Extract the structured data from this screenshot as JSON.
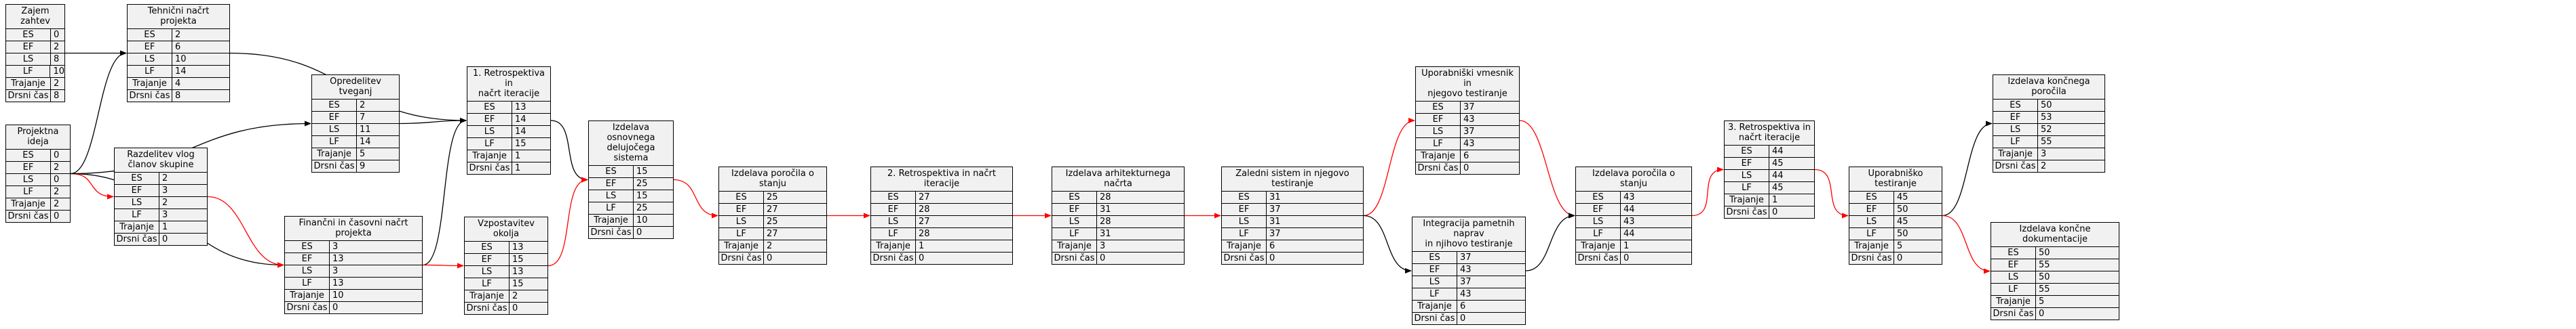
{
  "field_labels": [
    "ES",
    "EF",
    "LS",
    "LF",
    "Trajanje",
    "Drsni čas"
  ],
  "nodes": [
    {
      "id": "n0",
      "title": "Zajem zahtev",
      "values": [
        "0",
        "2",
        "8",
        "10",
        "2",
        "8"
      ]
    },
    {
      "id": "n1",
      "title": "Tehnični načrt projekta",
      "values": [
        "2",
        "6",
        "10",
        "14",
        "4",
        "8"
      ]
    },
    {
      "id": "n2",
      "title": "Projektna ideja",
      "values": [
        "0",
        "2",
        "0",
        "2",
        "2",
        "0"
      ]
    },
    {
      "id": "n3",
      "title": "Razdelitev vlog članov skupine",
      "values": [
        "2",
        "3",
        "2",
        "3",
        "1",
        "0"
      ]
    },
    {
      "id": "n4",
      "title": "Opredelitev tveganj",
      "values": [
        "2",
        "7",
        "11",
        "14",
        "5",
        "9"
      ]
    },
    {
      "id": "n5",
      "title": "Finančni in časovni načrt projekta",
      "values": [
        "3",
        "13",
        "3",
        "13",
        "10",
        "0"
      ]
    },
    {
      "id": "n6",
      "title": "1. Retrospektiva in\nnačrt iteracije",
      "values": [
        "13",
        "14",
        "14",
        "15",
        "1",
        "1"
      ]
    },
    {
      "id": "n7",
      "title": "Vzpostavitev okolja",
      "values": [
        "13",
        "15",
        "13",
        "15",
        "2",
        "0"
      ]
    },
    {
      "id": "n8",
      "title": "Izdelava osnovnega\ndelujočega sistema",
      "values": [
        "15",
        "25",
        "15",
        "25",
        "10",
        "0"
      ]
    },
    {
      "id": "n9",
      "title": "Izdelava poročila o stanju",
      "values": [
        "25",
        "27",
        "25",
        "27",
        "2",
        "0"
      ]
    },
    {
      "id": "n10",
      "title": "2. Retrospektiva in načrt iteracije",
      "values": [
        "27",
        "28",
        "27",
        "28",
        "1",
        "0"
      ]
    },
    {
      "id": "n11",
      "title": "Izdelava arhitekturnega načrta",
      "values": [
        "28",
        "31",
        "28",
        "31",
        "3",
        "0"
      ]
    },
    {
      "id": "n12",
      "title": "Zaledni sistem in njegovo testiranje",
      "values": [
        "31",
        "37",
        "31",
        "37",
        "6",
        "0"
      ]
    },
    {
      "id": "n13",
      "title": "Uporabniški vmesnik in\nnjegovo testiranje",
      "values": [
        "37",
        "43",
        "37",
        "43",
        "6",
        "0"
      ]
    },
    {
      "id": "n14",
      "title": "Integracija pametnih naprav\nin njihovo testiranje",
      "values": [
        "37",
        "43",
        "37",
        "43",
        "6",
        "0"
      ]
    },
    {
      "id": "n15",
      "title": "Izdelava poročila o stanju",
      "values": [
        "43",
        "44",
        "43",
        "44",
        "1",
        "0"
      ]
    },
    {
      "id": "n16",
      "title": "3. Retrospektiva in\nnačrt iteracije",
      "values": [
        "44",
        "45",
        "44",
        "45",
        "1",
        "0"
      ]
    },
    {
      "id": "n17",
      "title": "Uporabniško testiranje",
      "values": [
        "45",
        "50",
        "45",
        "50",
        "5",
        "0"
      ]
    },
    {
      "id": "n18",
      "title": "Izdelava končnega poročila",
      "values": [
        "50",
        "53",
        "52",
        "55",
        "3",
        "2"
      ]
    },
    {
      "id": "n19",
      "title": "Izdelava končne dokumentacije",
      "values": [
        "50",
        "55",
        "50",
        "55",
        "5",
        "0"
      ]
    }
  ],
  "edges": [
    {
      "from": "n0",
      "to": "n1",
      "critical": false
    },
    {
      "from": "n2",
      "to": "n1",
      "critical": false
    },
    {
      "from": "n2",
      "to": "n4",
      "critical": false
    },
    {
      "from": "n2",
      "to": "n3",
      "critical": true
    },
    {
      "from": "n2",
      "to": "n5",
      "critical": false
    },
    {
      "from": "n3",
      "to": "n5",
      "critical": true
    },
    {
      "from": "n1",
      "to": "n6",
      "critical": false
    },
    {
      "from": "n4",
      "to": "n6",
      "critical": false
    },
    {
      "from": "n5",
      "to": "n6",
      "critical": false
    },
    {
      "from": "n5",
      "to": "n7",
      "critical": true
    },
    {
      "from": "n6",
      "to": "n8",
      "critical": false
    },
    {
      "from": "n7",
      "to": "n8",
      "critical": true
    },
    {
      "from": "n8",
      "to": "n9",
      "critical": true
    },
    {
      "from": "n9",
      "to": "n10",
      "critical": true
    },
    {
      "from": "n10",
      "to": "n11",
      "critical": true
    },
    {
      "from": "n11",
      "to": "n12",
      "critical": true
    },
    {
      "from": "n12",
      "to": "n13",
      "critical": true
    },
    {
      "from": "n12",
      "to": "n14",
      "critical": false
    },
    {
      "from": "n13",
      "to": "n15",
      "critical": true
    },
    {
      "from": "n14",
      "to": "n15",
      "critical": false
    },
    {
      "from": "n15",
      "to": "n16",
      "critical": true
    },
    {
      "from": "n16",
      "to": "n17",
      "critical": true
    },
    {
      "from": "n17",
      "to": "n18",
      "critical": false
    },
    {
      "from": "n17",
      "to": "n19",
      "critical": true
    }
  ],
  "colors": {
    "critical": "#ff0000",
    "normal": "#000000",
    "node_fill": "#f1f1f1"
  }
}
